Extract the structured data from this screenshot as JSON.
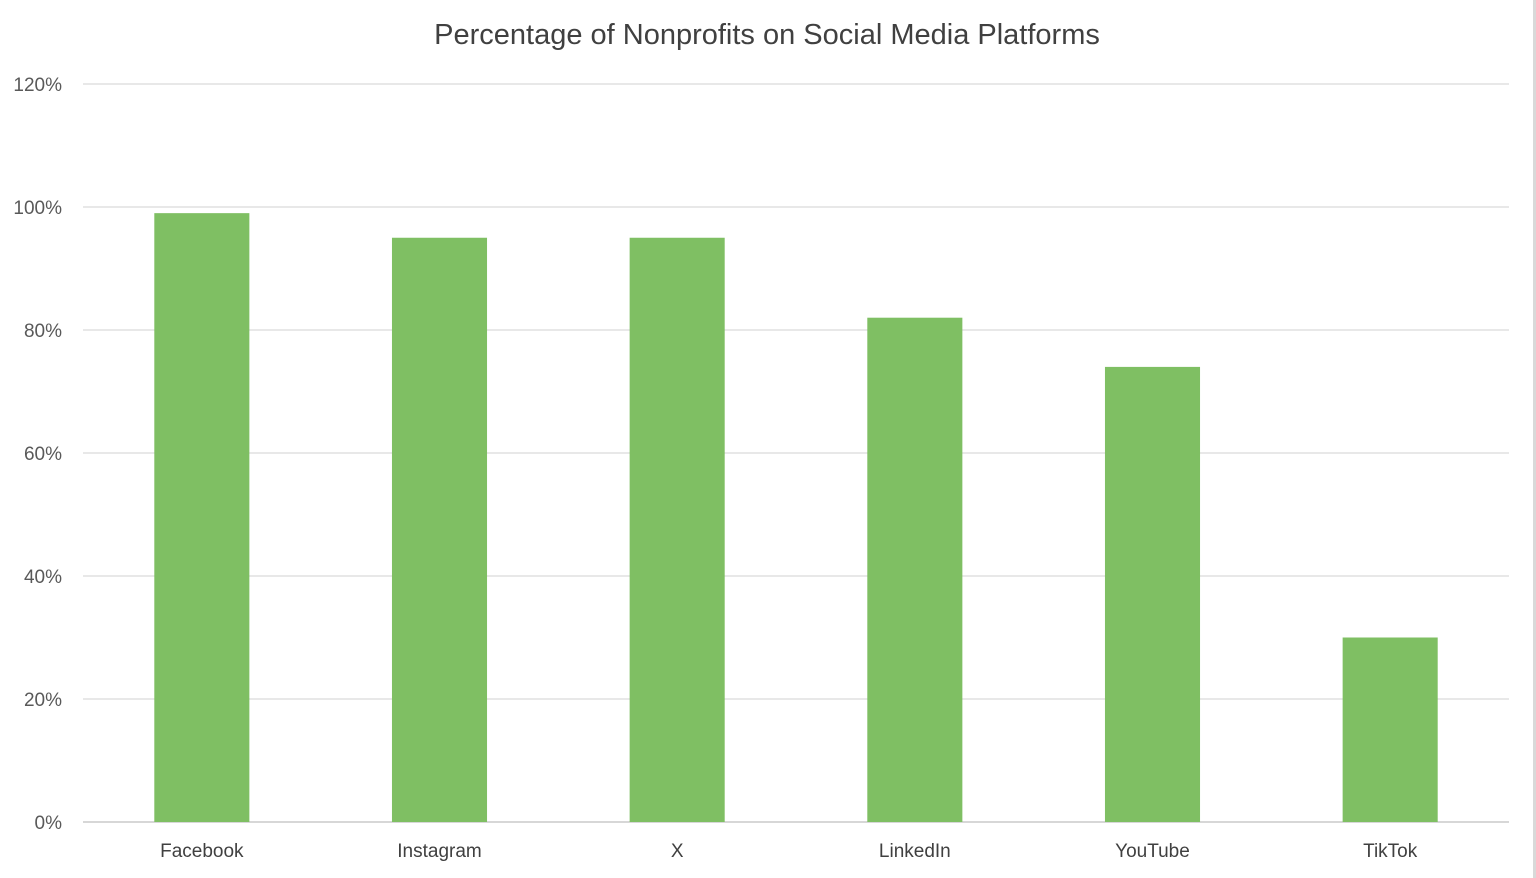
{
  "chart_data": {
    "type": "bar",
    "title": "Percentage of Nonprofits on Social Media Platforms",
    "xlabel": "",
    "ylabel": "",
    "categories": [
      "Facebook",
      "Instagram",
      "X",
      "LinkedIn",
      "YouTube",
      "TikTok"
    ],
    "values": [
      99,
      95,
      95,
      82,
      74,
      30
    ],
    "ylim": [
      0,
      120
    ],
    "yticks": [
      0,
      20,
      40,
      60,
      80,
      100,
      120
    ],
    "ytick_labels": [
      "0%",
      "20%",
      "40%",
      "60%",
      "80%",
      "100%",
      "120%"
    ],
    "grid": true,
    "legend": "none",
    "bar_color": "#7fbf63"
  }
}
